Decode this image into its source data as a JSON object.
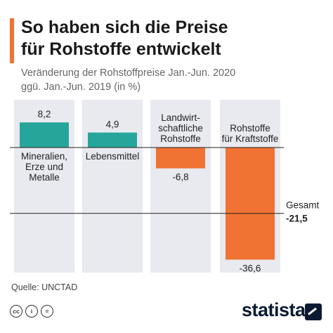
{
  "header": {
    "title_line1": "So haben sich die Preise",
    "title_line2": "für Rohstoffe entwickelt",
    "subtitle_line1": "Veränderung der Rohstoffpreise Jan.-Jun. 2020",
    "subtitle_line2": "ggü. Jan.-Jun. 2019 (in %)"
  },
  "colors": {
    "positive": "#26a69a",
    "negative": "#f07333",
    "column_bg": "#e9eaef",
    "accent": "#f07333"
  },
  "chart_data": {
    "type": "bar",
    "categories": [
      [
        "Mineralien,",
        "Erze und",
        "Metalle"
      ],
      [
        "Lebensmittel"
      ],
      [
        "Landwirt-",
        "schaftliche",
        "Rohstoffe"
      ],
      [
        "Rohstoffe",
        "für Kraftstoffe"
      ]
    ],
    "values": [
      8.2,
      4.9,
      -6.8,
      -36.6
    ],
    "value_labels": [
      "8,2",
      "4,9",
      "-6,8",
      "-36,6"
    ],
    "reference_line": {
      "label": "Gesamt",
      "value": -21.5,
      "value_label": "-21,5"
    },
    "ylim": [
      -40,
      12
    ]
  },
  "footer": {
    "source": "Quelle: UNCTAD",
    "brand": "statista",
    "license_icons": [
      "cc",
      "i",
      "="
    ]
  }
}
